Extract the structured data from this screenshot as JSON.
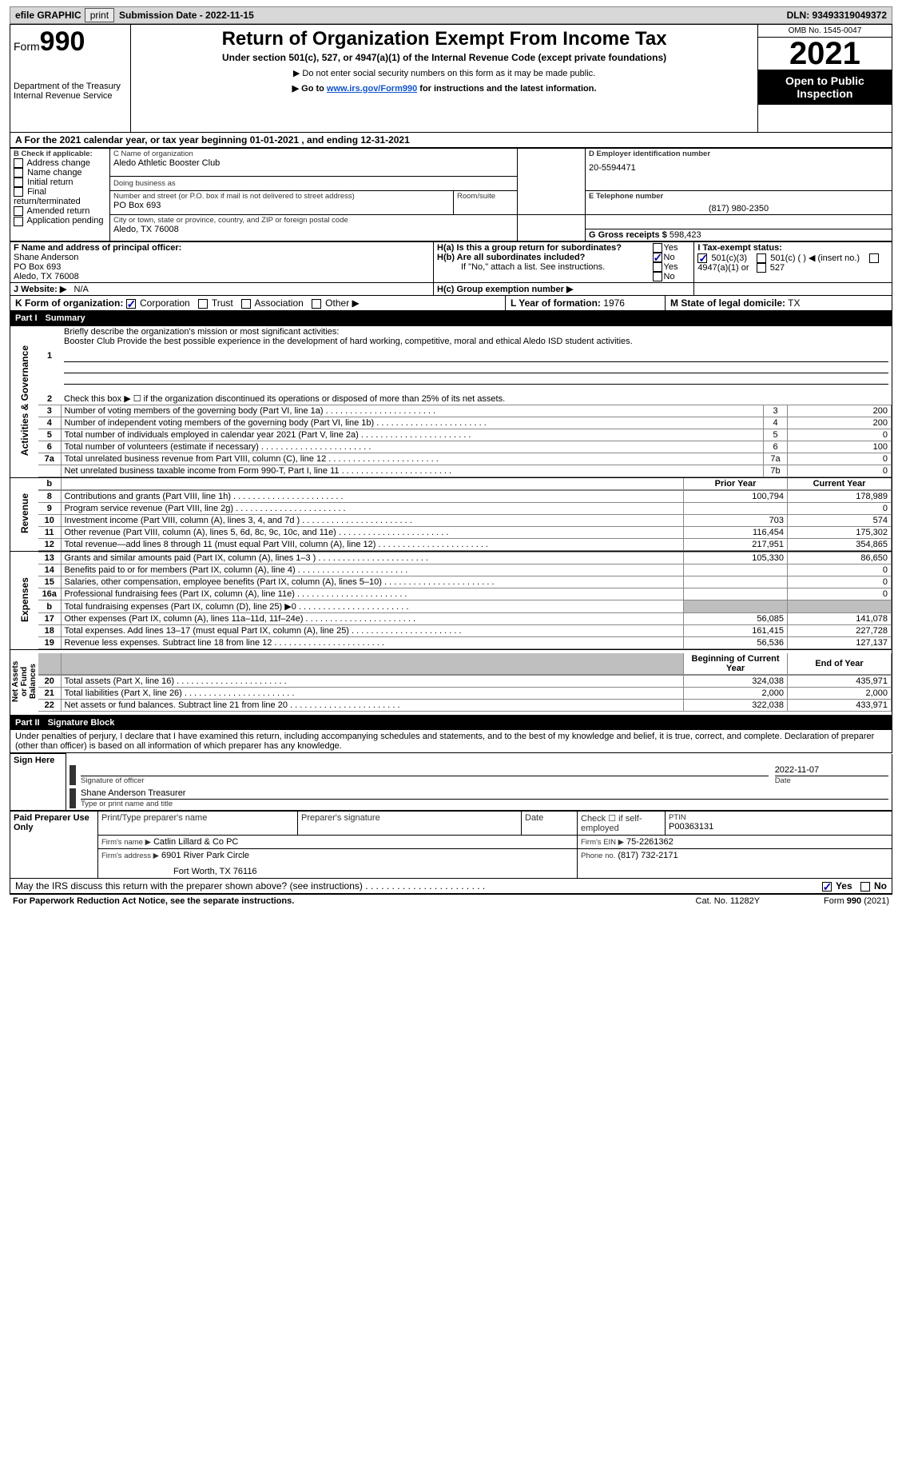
{
  "topbar": {
    "efile_label": "efile GRAPHIC",
    "print_btn": "print",
    "submission": "Submission Date - 2022-11-15",
    "dln": "DLN: 93493319049372"
  },
  "header": {
    "form_word": "Form",
    "form_num": "990",
    "dept": "Department of the Treasury",
    "irs": "Internal Revenue Service",
    "title": "Return of Organization Exempt From Income Tax",
    "sub": "Under section 501(c), 527, or 4947(a)(1) of the Internal Revenue Code (except private foundations)",
    "arrow1": "▶ Do not enter social security numbers on this form as it may be made public.",
    "arrow2_pre": "▶ Go to ",
    "arrow2_link": "www.irs.gov/Form990",
    "arrow2_post": " for instructions and the latest information.",
    "omb": "OMB No. 1545-0047",
    "year": "2021",
    "pub": "Open to Public Inspection"
  },
  "line_a": "A For the 2021 calendar year, or tax year beginning 01-01-2021    , and ending 12-31-2021",
  "box_b": {
    "label": "B Check if applicable:",
    "items": [
      "Address change",
      "Name change",
      "Initial return",
      "Final return/terminated",
      "Amended return",
      "Application pending"
    ]
  },
  "box_c": {
    "label": "C Name of organization",
    "name": "Aledo Athletic Booster Club",
    "dba_label": "Doing business as",
    "street_label": "Number and street (or P.O. box if mail is not delivered to street address)",
    "room_label": "Room/suite",
    "street": "PO Box 693",
    "city_label": "City or town, state or province, country, and ZIP or foreign postal code",
    "city": "Aledo, TX  76008"
  },
  "box_d": {
    "label": "D Employer identification number",
    "value": "20-5594471"
  },
  "box_e": {
    "label": "E Telephone number",
    "value": "(817) 980-2350"
  },
  "box_g": {
    "label": "G Gross receipts $",
    "value": "598,423"
  },
  "box_f": {
    "label": "F  Name and address of principal officer:",
    "name": "Shane Anderson",
    "line2": "PO Box 693",
    "line3": "Aledo, TX  76008"
  },
  "box_h": {
    "a_label": "H(a)  Is this a group return for subordinates?",
    "b_label": "H(b)  Are all subordinates included?",
    "note": "If \"No,\" attach a list. See instructions.",
    "c_label": "H(c)  Group exemption number ▶",
    "yes": "Yes",
    "no": "No"
  },
  "line_i": {
    "label": "I     Tax-exempt status:",
    "o1": "501(c)(3)",
    "o2": "501(c) (  ) ◀ (insert no.)",
    "o3": "4947(a)(1) or",
    "o4": "527"
  },
  "line_j": {
    "label": "J    Website: ▶",
    "value": "N/A"
  },
  "line_k": {
    "label": "K Form of organization:",
    "o1": "Corporation",
    "o2": "Trust",
    "o3": "Association",
    "o4": "Other ▶"
  },
  "line_l": {
    "label": "L Year of formation:",
    "value": "1976"
  },
  "line_m": {
    "label": "M State of legal domicile:",
    "value": "TX"
  },
  "part1": {
    "num": "Part I",
    "title": "Summary"
  },
  "sections": {
    "activities": "Activities & Governance",
    "revenue": "Revenue",
    "expenses": "Expenses",
    "net": "Net Assets or Fund Balances"
  },
  "line1": {
    "intro": "Briefly describe the organization's mission or most significant activities:",
    "text": "Booster Club Provide the best possible experience in the development of hard working, competitive, moral and ethical Aledo ISD student activities."
  },
  "line2": "Check this box ▶ ☐ if the organization discontinued its operations or disposed of more than 25% of its net assets.",
  "lines_ag": [
    {
      "n": "3",
      "d": "Number of voting members of the governing body (Part VI, line 1a)",
      "b": "3",
      "v": "200"
    },
    {
      "n": "4",
      "d": "Number of independent voting members of the governing body (Part VI, line 1b)",
      "b": "4",
      "v": "200"
    },
    {
      "n": "5",
      "d": "Total number of individuals employed in calendar year 2021 (Part V, line 2a)",
      "b": "5",
      "v": "0"
    },
    {
      "n": "6",
      "d": "Total number of volunteers (estimate if necessary)",
      "b": "6",
      "v": "100"
    },
    {
      "n": "7a",
      "d": "Total unrelated business revenue from Part VIII, column (C), line 12",
      "b": "7a",
      "v": "0"
    },
    {
      "n": "",
      "d": "Net unrelated business taxable income from Form 990-T, Part I, line 11",
      "b": "7b",
      "v": "0"
    }
  ],
  "hdr_cols": {
    "prior": "Prior Year",
    "curr": "Current Year",
    "beg": "Beginning of Current Year",
    "end": "End of Year"
  },
  "lines_rev": [
    {
      "n": "8",
      "d": "Contributions and grants (Part VIII, line 1h)",
      "p": "100,794",
      "c": "178,989"
    },
    {
      "n": "9",
      "d": "Program service revenue (Part VIII, line 2g)",
      "p": "",
      "c": "0"
    },
    {
      "n": "10",
      "d": "Investment income (Part VIII, column (A), lines 3, 4, and 7d )",
      "p": "703",
      "c": "574"
    },
    {
      "n": "11",
      "d": "Other revenue (Part VIII, column (A), lines 5, 6d, 8c, 9c, 10c, and 11e)",
      "p": "116,454",
      "c": "175,302"
    },
    {
      "n": "12",
      "d": "Total revenue—add lines 8 through 11 (must equal Part VIII, column (A), line 12)",
      "p": "217,951",
      "c": "354,865"
    }
  ],
  "lines_exp": [
    {
      "n": "13",
      "d": "Grants and similar amounts paid (Part IX, column (A), lines 1–3 )",
      "p": "105,330",
      "c": "86,650"
    },
    {
      "n": "14",
      "d": "Benefits paid to or for members (Part IX, column (A), line 4)",
      "p": "",
      "c": "0"
    },
    {
      "n": "15",
      "d": "Salaries, other compensation, employee benefits (Part IX, column (A), lines 5–10)",
      "p": "",
      "c": "0"
    },
    {
      "n": "16a",
      "d": "Professional fundraising fees (Part IX, column (A), line 11e)",
      "p": "",
      "c": "0"
    },
    {
      "n": "b",
      "d": "Total fundraising expenses (Part IX, column (D), line 25) ▶0",
      "p": "shade",
      "c": "shade"
    },
    {
      "n": "17",
      "d": "Other expenses (Part IX, column (A), lines 11a–11d, 11f–24e)",
      "p": "56,085",
      "c": "141,078"
    },
    {
      "n": "18",
      "d": "Total expenses. Add lines 13–17 (must equal Part IX, column (A), line 25)",
      "p": "161,415",
      "c": "227,728"
    },
    {
      "n": "19",
      "d": "Revenue less expenses. Subtract line 18 from line 12",
      "p": "56,536",
      "c": "127,137"
    }
  ],
  "lines_net": [
    {
      "n": "20",
      "d": "Total assets (Part X, line 16)",
      "p": "324,038",
      "c": "435,971"
    },
    {
      "n": "21",
      "d": "Total liabilities (Part X, line 26)",
      "p": "2,000",
      "c": "2,000"
    },
    {
      "n": "22",
      "d": "Net assets or fund balances. Subtract line 21 from line 20",
      "p": "322,038",
      "c": "433,971"
    }
  ],
  "part2": {
    "num": "Part II",
    "title": "Signature Block"
  },
  "penalties": "Under penalties of perjury, I declare that I have examined this return, including accompanying schedules and statements, and to the best of my knowledge and belief, it is true, correct, and complete. Declaration of preparer (other than officer) is based on all information of which preparer has any knowledge.",
  "sign": {
    "here": "Sign Here",
    "sig_officer": "Signature of officer",
    "date_label": "Date",
    "date": "2022-11-07",
    "name": "Shane Anderson  Treasurer",
    "type_name": "Type or print name and title"
  },
  "paid": {
    "label": "Paid Preparer Use Only",
    "h1": "Print/Type preparer's name",
    "h2": "Preparer's signature",
    "h3": "Date",
    "h4_pre": "Check ☐ if self-employed",
    "h5": "PTIN",
    "ptin": "P00363131",
    "firm_label": "Firm's name    ▶",
    "firm": "Catlin Lillard & Co PC",
    "ein_label": "Firm's EIN ▶",
    "ein": "75-2261362",
    "addr_label": "Firm's address ▶",
    "addr1": "6901 River Park Circle",
    "addr2": "Fort Worth, TX  76116",
    "phone_label": "Phone no.",
    "phone": "(817) 732-2171"
  },
  "may_irs": {
    "text": "May the IRS discuss this return with the preparer shown above? (see instructions)",
    "yes": "Yes",
    "no": "No"
  },
  "footer": {
    "left": "For Paperwork Reduction Act Notice, see the separate instructions.",
    "mid": "Cat. No. 11282Y",
    "right": "Form 990 (2021)"
  }
}
